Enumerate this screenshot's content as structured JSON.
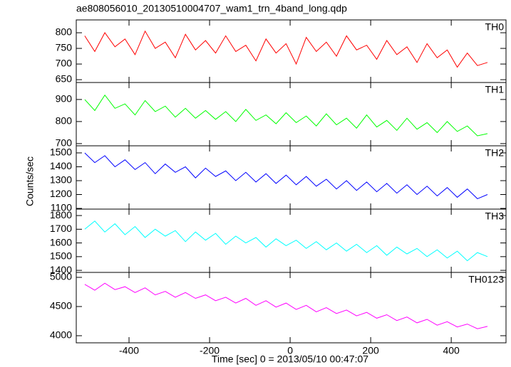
{
  "title": "ae808056010_20130510004707_wam1_trn_4band_long.qdp",
  "xlabel": "Time [sec] 0 = 2013/05/10 00:47:07",
  "ylabel": "Counts/sec",
  "xlim": [
    -531,
    536
  ],
  "xticks": [
    -400,
    -200,
    0,
    200,
    400
  ],
  "x": [
    -510,
    -485,
    -460,
    -435,
    -410,
    -385,
    -360,
    -335,
    -310,
    -285,
    -260,
    -235,
    -210,
    -185,
    -160,
    -135,
    -110,
    -85,
    -60,
    -35,
    -10,
    15,
    40,
    65,
    90,
    115,
    140,
    165,
    190,
    215,
    240,
    265,
    290,
    315,
    340,
    365,
    390,
    415,
    440,
    465,
    490
  ],
  "chart_data": [
    {
      "type": "line",
      "label": "TH0",
      "color": "#ff0000",
      "ylim": [
        641,
        841
      ],
      "yticks": [
        650,
        700,
        750,
        800
      ],
      "values": [
        790,
        740,
        800,
        755,
        780,
        730,
        805,
        750,
        770,
        720,
        795,
        745,
        775,
        735,
        790,
        740,
        760,
        710,
        780,
        735,
        765,
        700,
        785,
        740,
        770,
        725,
        790,
        745,
        760,
        715,
        775,
        730,
        755,
        705,
        765,
        720,
        745,
        690,
        735,
        695,
        705
      ]
    },
    {
      "type": "line",
      "label": "TH1",
      "color": "#00ff00",
      "ylim": [
        690,
        977
      ],
      "yticks": [
        700,
        800,
        900
      ],
      "values": [
        900,
        850,
        920,
        860,
        880,
        830,
        895,
        845,
        870,
        820,
        860,
        815,
        850,
        810,
        845,
        800,
        855,
        805,
        830,
        790,
        840,
        795,
        825,
        780,
        835,
        785,
        815,
        770,
        830,
        775,
        805,
        760,
        815,
        765,
        795,
        750,
        800,
        755,
        780,
        735,
        745
      ]
    },
    {
      "type": "line",
      "label": "TH2",
      "color": "#0000ff",
      "ylim": [
        1095,
        1551
      ],
      "yticks": [
        1100,
        1200,
        1300,
        1400,
        1500
      ],
      "values": [
        1500,
        1430,
        1480,
        1400,
        1450,
        1380,
        1430,
        1350,
        1420,
        1360,
        1400,
        1320,
        1390,
        1330,
        1370,
        1300,
        1360,
        1290,
        1350,
        1280,
        1340,
        1270,
        1330,
        1260,
        1310,
        1240,
        1300,
        1230,
        1290,
        1220,
        1280,
        1210,
        1270,
        1200,
        1260,
        1190,
        1250,
        1180,
        1240,
        1170,
        1200
      ]
    },
    {
      "type": "line",
      "label": "TH3",
      "color": "#00ffff",
      "ylim": [
        1385,
        1847
      ],
      "yticks": [
        1400,
        1500,
        1600,
        1700,
        1800
      ],
      "values": [
        1700,
        1760,
        1680,
        1740,
        1660,
        1720,
        1640,
        1700,
        1650,
        1690,
        1610,
        1680,
        1620,
        1670,
        1590,
        1650,
        1600,
        1640,
        1570,
        1630,
        1580,
        1620,
        1560,
        1610,
        1550,
        1600,
        1540,
        1590,
        1530,
        1580,
        1510,
        1570,
        1520,
        1560,
        1500,
        1550,
        1490,
        1540,
        1470,
        1530,
        1500
      ]
    },
    {
      "type": "line",
      "label": "TH0123",
      "color": "#ff00ff",
      "ylim": [
        3878,
        5085
      ],
      "yticks": [
        4000,
        4500,
        5000
      ],
      "values": [
        4880,
        4780,
        4900,
        4790,
        4840,
        4740,
        4820,
        4700,
        4760,
        4660,
        4740,
        4640,
        4700,
        4600,
        4660,
        4560,
        4640,
        4520,
        4600,
        4490,
        4560,
        4450,
        4520,
        4410,
        4480,
        4380,
        4440,
        4340,
        4400,
        4300,
        4360,
        4260,
        4320,
        4220,
        4280,
        4180,
        4240,
        4150,
        4200,
        4120,
        4160
      ]
    }
  ]
}
